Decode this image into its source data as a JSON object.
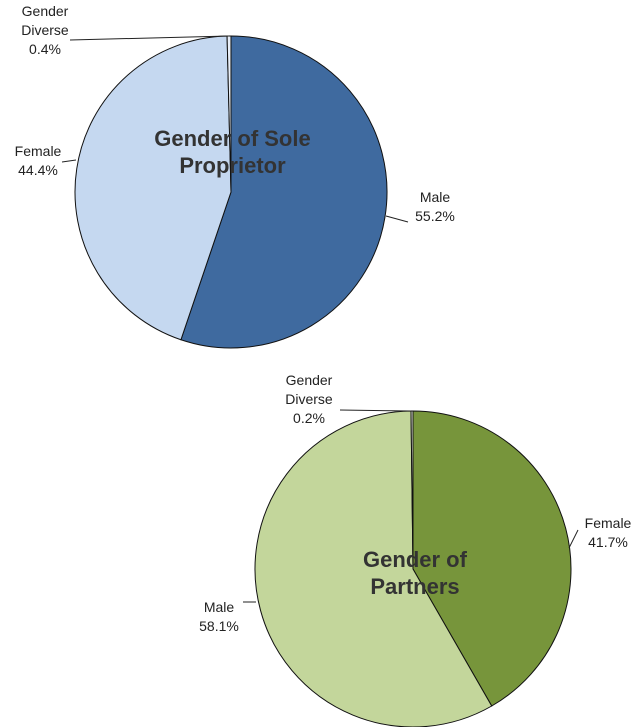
{
  "chart_data": [
    {
      "type": "pie",
      "title": "Gender of Sole Proprietor",
      "categories": [
        "Male",
        "Female",
        "Gender Diverse"
      ],
      "values": [
        55.2,
        44.4,
        0.4
      ],
      "value_labels": [
        "55.2%",
        "44.4%",
        "0.4%"
      ],
      "colors": [
        "#3f6a9f",
        "#c5d8f0",
        "#e8eef7"
      ]
    },
    {
      "type": "pie",
      "title": "Gender of Partners",
      "categories": [
        "Female",
        "Male",
        "Gender Diverse"
      ],
      "values": [
        41.7,
        58.1,
        0.2
      ],
      "value_labels": [
        "41.7%",
        "58.1%",
        "0.2%"
      ],
      "colors": [
        "#77953b",
        "#c3d69b",
        "#eef3e2"
      ]
    }
  ]
}
